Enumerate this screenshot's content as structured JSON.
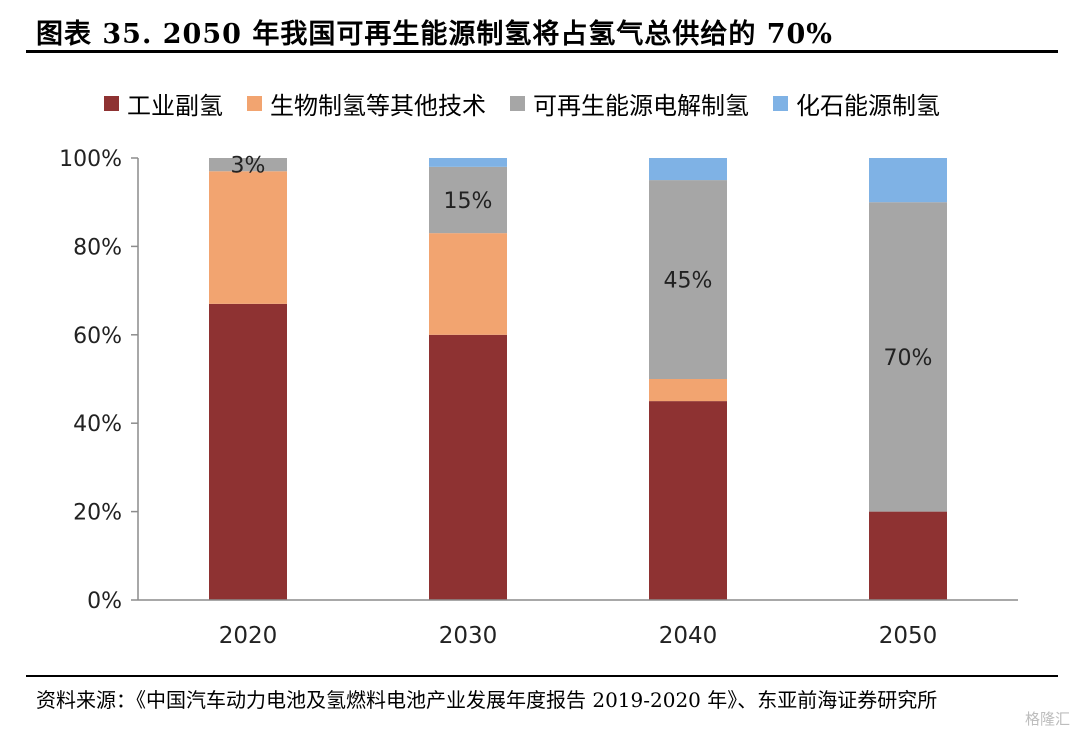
{
  "title": "图表 35. 2050 年我国可再生能源制氢将占氢气总供给的 70%",
  "source": "资料来源：《中国汽车动力电池及氢燃料电池产业发展年度报告 2019-2020 年》、东亚前海证券研究所",
  "watermark": "格隆汇",
  "chart_data": {
    "type": "bar",
    "stacked": true,
    "categories": [
      "2020",
      "2030",
      "2040",
      "2050"
    ],
    "ylim": [
      0,
      100
    ],
    "yticks": [
      "0%",
      "20%",
      "40%",
      "60%",
      "80%",
      "100%"
    ],
    "legend_position": "top",
    "series": [
      {
        "name": "工业副氢",
        "color": "#8e3232",
        "values": [
          67,
          60,
          45,
          20
        ]
      },
      {
        "name": "生物制氢等其他技术",
        "color": "#f2a470",
        "values": [
          30,
          23,
          5,
          0
        ]
      },
      {
        "name": "可再生能源电解制氢",
        "color": "#a6a6a6",
        "values": [
          3,
          15,
          45,
          70
        ]
      },
      {
        "name": "化石能源制氢",
        "color": "#7fb2e5",
        "values": [
          0,
          2,
          5,
          10
        ]
      }
    ],
    "annotations": [
      "3%",
      "15%",
      "45%",
      "70%"
    ]
  }
}
